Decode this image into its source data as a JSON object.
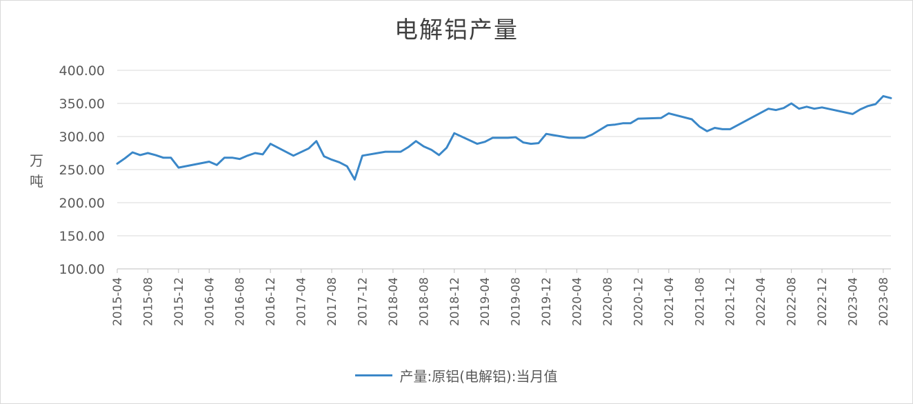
{
  "chart_data": {
    "type": "line",
    "title": "电解铝产量",
    "ylabel": "万\n吨",
    "xlabel": "",
    "ylim": [
      100,
      400
    ],
    "yticks": [
      "400.00",
      "350.00",
      "300.00",
      "250.00",
      "200.00",
      "150.00",
      "100.00"
    ],
    "x_tick_labels": [
      "2015-04",
      "2015-08",
      "2015-12",
      "2016-04",
      "2016-08",
      "2016-12",
      "2017-04",
      "2017-08",
      "2017-12",
      "2018-04",
      "2018-08",
      "2018-12",
      "2019-04",
      "2019-08",
      "2019-12",
      "2020-04",
      "2020-08",
      "2020-12",
      "2021-04",
      "2021-08",
      "2021-12",
      "2022-04",
      "2022-08",
      "2022-12",
      "2023-04",
      "2023-08"
    ],
    "grid": true,
    "legend_position": "bottom",
    "series": [
      {
        "name": "产量:原铝(电解铝):当月值",
        "color": "#3a87c8",
        "points": [
          [
            "2015-04",
            259
          ],
          [
            "2015-05",
            267
          ],
          [
            "2015-06",
            276
          ],
          [
            "2015-07",
            272
          ],
          [
            "2015-08",
            275
          ],
          [
            "2015-09",
            272
          ],
          [
            "2015-10",
            268
          ],
          [
            "2015-11",
            268
          ],
          [
            "2015-12",
            253
          ],
          [
            "2016-04",
            262
          ],
          [
            "2016-05",
            257
          ],
          [
            "2016-06",
            268
          ],
          [
            "2016-07",
            268
          ],
          [
            "2016-08",
            266
          ],
          [
            "2016-09",
            271
          ],
          [
            "2016-10",
            275
          ],
          [
            "2016-11",
            273
          ],
          [
            "2016-12",
            289
          ],
          [
            "2017-03",
            271
          ],
          [
            "2017-05",
            282
          ],
          [
            "2017-06",
            293
          ],
          [
            "2017-07",
            270
          ],
          [
            "2017-08",
            265
          ],
          [
            "2017-09",
            261
          ],
          [
            "2017-10",
            255
          ],
          [
            "2017-11",
            235
          ],
          [
            "2017-12",
            271
          ],
          [
            "2018-03",
            277
          ],
          [
            "2018-04",
            277
          ],
          [
            "2018-05",
            277
          ],
          [
            "2018-06",
            284
          ],
          [
            "2018-07",
            293
          ],
          [
            "2018-08",
            285
          ],
          [
            "2018-09",
            280
          ],
          [
            "2018-10",
            272
          ],
          [
            "2018-11",
            283
          ],
          [
            "2018-12",
            305
          ],
          [
            "2019-03",
            289
          ],
          [
            "2019-04",
            292
          ],
          [
            "2019-05",
            298
          ],
          [
            "2019-06",
            298
          ],
          [
            "2019-07",
            298
          ],
          [
            "2019-08",
            299
          ],
          [
            "2019-09",
            291
          ],
          [
            "2019-10",
            289
          ],
          [
            "2019-11",
            290
          ],
          [
            "2019-12",
            304
          ],
          [
            "2020-01",
            302
          ],
          [
            "2020-02",
            300
          ],
          [
            "2020-03",
            298
          ],
          [
            "2020-05",
            298
          ],
          [
            "2020-06",
            303
          ],
          [
            "2020-07",
            310
          ],
          [
            "2020-08",
            317
          ],
          [
            "2020-09",
            318
          ],
          [
            "2020-10",
            320
          ],
          [
            "2020-11",
            320
          ],
          [
            "2020-12",
            327
          ],
          [
            "2021-03",
            328
          ],
          [
            "2021-04",
            335
          ],
          [
            "2021-07",
            326
          ],
          [
            "2021-08",
            315
          ],
          [
            "2021-09",
            308
          ],
          [
            "2021-10",
            313
          ],
          [
            "2021-11",
            311
          ],
          [
            "2021-12",
            311
          ],
          [
            "2022-05",
            342
          ],
          [
            "2022-06",
            340
          ],
          [
            "2022-07",
            343
          ],
          [
            "2022-08",
            350
          ],
          [
            "2022-09",
            342
          ],
          [
            "2022-10",
            345
          ],
          [
            "2022-11",
            342
          ],
          [
            "2022-12",
            344
          ],
          [
            "2023-04",
            334
          ],
          [
            "2023-05",
            341
          ],
          [
            "2023-06",
            346
          ],
          [
            "2023-07",
            349
          ],
          [
            "2023-08",
            361
          ],
          [
            "2023-09",
            358
          ]
        ]
      }
    ]
  }
}
